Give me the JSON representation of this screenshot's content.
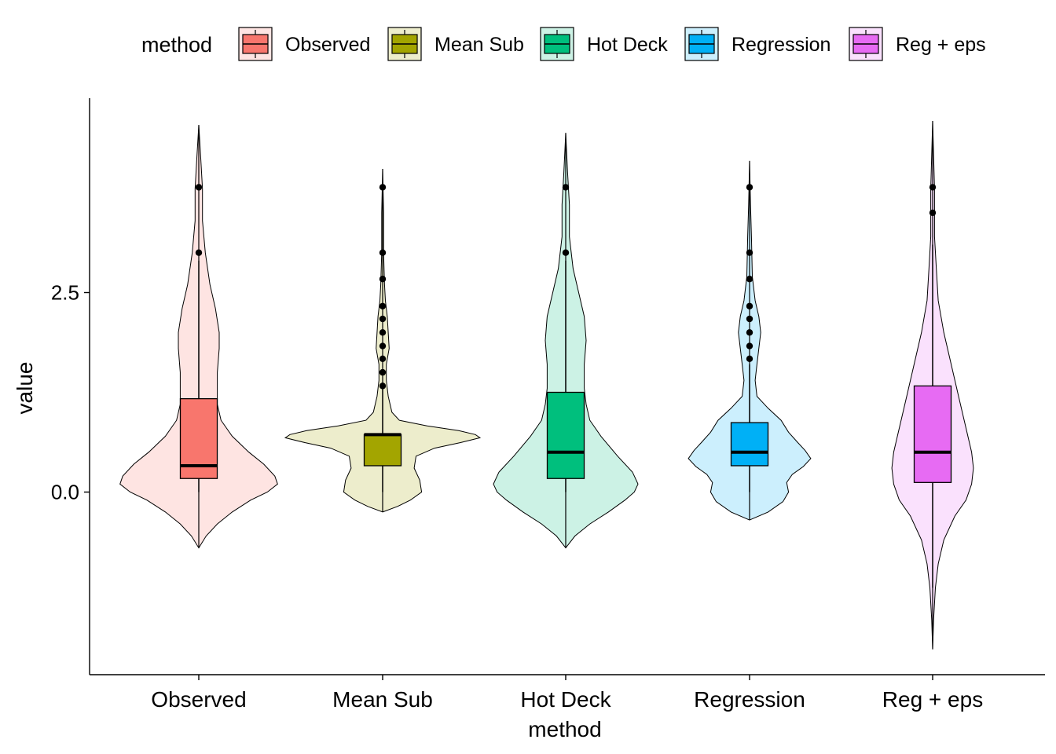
{
  "chart_data": {
    "type": "violin",
    "title": "",
    "xlabel": "method",
    "ylabel": "value",
    "ylim": [
      -0.95,
      3.35
    ],
    "y_ticks": [
      {
        "value": 0.0,
        "label": "0.0"
      },
      {
        "value": 2.5,
        "label": "2.5"
      }
    ],
    "grid": false,
    "legend": {
      "title": "method",
      "position": "top",
      "entries": [
        "Observed",
        "Mean Sub",
        "Hot Deck",
        "Regression",
        "Reg + eps"
      ]
    },
    "categories": [
      "Observed",
      "Mean Sub",
      "Hot Deck",
      "Regression",
      "Reg + eps"
    ],
    "series": [
      {
        "category": "Observed",
        "color": "#F8766D",
        "violin_range": [
          -0.7,
          4.6
        ],
        "density": [
          [
            -0.7,
            0.0
          ],
          [
            -0.55,
            0.08
          ],
          [
            -0.4,
            0.2
          ],
          [
            -0.25,
            0.36
          ],
          [
            -0.1,
            0.56
          ],
          [
            0.0,
            0.74
          ],
          [
            0.1,
            0.85
          ],
          [
            0.2,
            0.82
          ],
          [
            0.35,
            0.7
          ],
          [
            0.5,
            0.54
          ],
          [
            0.7,
            0.36
          ],
          [
            0.9,
            0.24
          ],
          [
            1.1,
            0.2
          ],
          [
            1.3,
            0.2
          ],
          [
            1.5,
            0.2
          ],
          [
            1.8,
            0.22
          ],
          [
            2.0,
            0.22
          ],
          [
            2.3,
            0.18
          ],
          [
            2.6,
            0.12
          ],
          [
            3.0,
            0.07
          ],
          [
            3.4,
            0.04
          ],
          [
            3.8,
            0.04
          ],
          [
            4.2,
            0.02
          ],
          [
            4.6,
            0.0
          ]
        ],
        "box": {
          "lower": 0.0,
          "q1": 0.17,
          "median": 0.33,
          "q3": 1.17,
          "upper": 2.9
        },
        "outliers": [
          3.0,
          3.82
        ]
      },
      {
        "category": "Mean Sub",
        "color": "#A3A500",
        "violin_range": [
          -0.25,
          4.05
        ],
        "density": [
          [
            -0.25,
            0.0
          ],
          [
            -0.18,
            0.16
          ],
          [
            -0.1,
            0.3
          ],
          [
            0.0,
            0.42
          ],
          [
            0.15,
            0.4
          ],
          [
            0.3,
            0.34
          ],
          [
            0.45,
            0.36
          ],
          [
            0.55,
            0.56
          ],
          [
            0.62,
            0.84
          ],
          [
            0.68,
            1.05
          ],
          [
            0.72,
            1.0
          ],
          [
            0.77,
            0.82
          ],
          [
            0.83,
            0.48
          ],
          [
            0.9,
            0.18
          ],
          [
            1.0,
            0.1
          ],
          [
            1.2,
            0.06
          ],
          [
            1.4,
            0.04
          ],
          [
            1.6,
            0.04
          ],
          [
            1.8,
            0.07
          ],
          [
            2.0,
            0.06
          ],
          [
            2.2,
            0.05
          ],
          [
            2.4,
            0.03
          ],
          [
            2.6,
            0.02
          ],
          [
            3.0,
            0.01
          ],
          [
            3.5,
            0.01
          ],
          [
            4.05,
            0.0
          ]
        ],
        "box": {
          "lower": 0.0,
          "q1": 0.33,
          "median": 0.72,
          "q3": 0.72,
          "upper": 1.3
        },
        "outliers": [
          1.33,
          1.5,
          1.67,
          1.83,
          2.0,
          2.17,
          2.33,
          2.67,
          3.0,
          3.82
        ]
      },
      {
        "category": "Hot Deck",
        "color": "#00BF7D",
        "violin_range": [
          -0.7,
          4.5
        ],
        "density": [
          [
            -0.7,
            0.0
          ],
          [
            -0.55,
            0.1
          ],
          [
            -0.4,
            0.26
          ],
          [
            -0.25,
            0.46
          ],
          [
            -0.1,
            0.64
          ],
          [
            0.0,
            0.74
          ],
          [
            0.1,
            0.78
          ],
          [
            0.25,
            0.72
          ],
          [
            0.45,
            0.56
          ],
          [
            0.7,
            0.38
          ],
          [
            0.9,
            0.26
          ],
          [
            1.1,
            0.22
          ],
          [
            1.3,
            0.2
          ],
          [
            1.6,
            0.2
          ],
          [
            1.9,
            0.22
          ],
          [
            2.2,
            0.2
          ],
          [
            2.5,
            0.14
          ],
          [
            2.8,
            0.08
          ],
          [
            3.2,
            0.04
          ],
          [
            3.6,
            0.04
          ],
          [
            4.0,
            0.02
          ],
          [
            4.5,
            0.0
          ]
        ],
        "box": {
          "lower": 0.0,
          "q1": 0.17,
          "median": 0.5,
          "q3": 1.25,
          "upper": 2.9
        },
        "outliers": [
          3.0,
          3.82
        ]
      },
      {
        "category": "Regression",
        "color": "#00B0F6",
        "violin_range": [
          -0.35,
          4.15
        ],
        "density": [
          [
            -0.35,
            0.0
          ],
          [
            -0.25,
            0.2
          ],
          [
            -0.12,
            0.36
          ],
          [
            0.0,
            0.42
          ],
          [
            0.12,
            0.4
          ],
          [
            0.22,
            0.46
          ],
          [
            0.32,
            0.58
          ],
          [
            0.42,
            0.66
          ],
          [
            0.52,
            0.6
          ],
          [
            0.62,
            0.52
          ],
          [
            0.75,
            0.42
          ],
          [
            0.9,
            0.34
          ],
          [
            1.05,
            0.2
          ],
          [
            1.2,
            0.08
          ],
          [
            1.4,
            0.06
          ],
          [
            1.6,
            0.08
          ],
          [
            1.8,
            0.1
          ],
          [
            2.0,
            0.12
          ],
          [
            2.2,
            0.1
          ],
          [
            2.4,
            0.06
          ],
          [
            2.7,
            0.03
          ],
          [
            3.2,
            0.02
          ],
          [
            3.6,
            0.01
          ],
          [
            4.15,
            0.0
          ]
        ],
        "box": {
          "lower": 0.0,
          "q1": 0.33,
          "median": 0.5,
          "q3": 0.87,
          "upper": 1.6
        },
        "outliers": [
          1.67,
          1.83,
          2.0,
          2.17,
          2.33,
          2.67,
          3.0,
          3.82
        ]
      },
      {
        "category": "Reg + eps",
        "color": "#E76BF3",
        "violin_range": [
          -1.97,
          4.65
        ],
        "density": [
          [
            -1.97,
            0.0
          ],
          [
            -1.6,
            0.01
          ],
          [
            -1.2,
            0.03
          ],
          [
            -0.9,
            0.06
          ],
          [
            -0.6,
            0.12
          ],
          [
            -0.3,
            0.24
          ],
          [
            -0.1,
            0.36
          ],
          [
            0.1,
            0.42
          ],
          [
            0.3,
            0.44
          ],
          [
            0.5,
            0.42
          ],
          [
            0.8,
            0.36
          ],
          [
            1.2,
            0.28
          ],
          [
            1.6,
            0.2
          ],
          [
            2.0,
            0.12
          ],
          [
            2.4,
            0.06
          ],
          [
            2.8,
            0.04
          ],
          [
            3.2,
            0.02
          ],
          [
            3.8,
            0.02
          ],
          [
            4.65,
            0.0
          ]
        ],
        "box": {
          "lower": -1.2,
          "q1": 0.12,
          "median": 0.5,
          "q3": 1.33,
          "upper": 3.1
        },
        "outliers": [
          3.5,
          3.82
        ]
      }
    ]
  }
}
